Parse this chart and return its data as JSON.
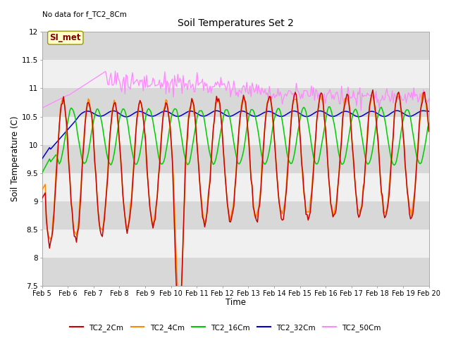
{
  "title": "Soil Temperatures Set 2",
  "xlabel": "Time",
  "ylabel": "Soil Temperature (C)",
  "ylim": [
    7.5,
    12.0
  ],
  "yticks": [
    7.5,
    8.0,
    8.5,
    9.0,
    9.5,
    10.0,
    10.5,
    11.0,
    11.5,
    12.0
  ],
  "xtick_labels": [
    "Feb 5",
    "Feb 6",
    "Feb 7",
    "Feb 8",
    "Feb 9",
    "Feb 10",
    "Feb 11",
    "Feb 12",
    "Feb 13",
    "Feb 14",
    "Feb 15",
    "Feb 16",
    "Feb 17",
    "Feb 18",
    "Feb 19",
    "Feb 20"
  ],
  "no_data_text": "No data for f_TC2_8Cm",
  "SI_met_label": "SI_met",
  "legend_labels": [
    "TC2_2Cm",
    "TC2_4Cm",
    "TC2_16Cm",
    "TC2_32Cm",
    "TC2_50Cm"
  ],
  "colors": {
    "TC2_2Cm": "#cc0000",
    "TC2_4Cm": "#ff8800",
    "TC2_16Cm": "#00cc00",
    "TC2_32Cm": "#0000cc",
    "TC2_50Cm": "#ff88ff"
  },
  "background_color": "#ffffff",
  "band_light": "#f0f0f0",
  "band_dark": "#d8d8d8",
  "figsize": [
    6.4,
    4.8
  ],
  "dpi": 100
}
